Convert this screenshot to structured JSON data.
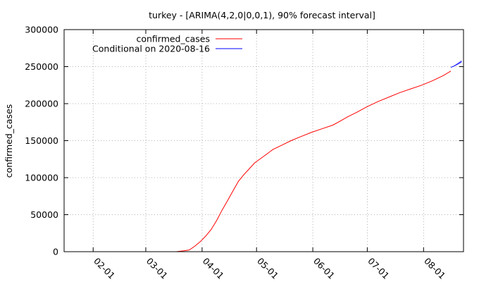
{
  "chart_data": {
    "type": "line",
    "title": "turkey -  [ARIMA(4,2,0|0,0,1), 90% forecast interval]",
    "xlabel": "",
    "ylabel": "confirmed_cases",
    "ylim": [
      0,
      300000
    ],
    "y_ticks": [
      {
        "value": 0,
        "label": "0"
      },
      {
        "value": 50000,
        "label": "50000"
      },
      {
        "value": 100000,
        "label": "100000"
      },
      {
        "value": 150000,
        "label": "150000"
      },
      {
        "value": 200000,
        "label": "200000"
      },
      {
        "value": 250000,
        "label": "250000"
      },
      {
        "value": 300000,
        "label": "300000"
      }
    ],
    "xlim": [
      "2020-01-16",
      "2020-08-23"
    ],
    "x_ticks": [
      {
        "value": "2020-02-01",
        "label": "02-01"
      },
      {
        "value": "2020-03-01",
        "label": "03-01"
      },
      {
        "value": "2020-04-01",
        "label": "04-01"
      },
      {
        "value": "2020-05-01",
        "label": "05-01"
      },
      {
        "value": "2020-06-01",
        "label": "06-01"
      },
      {
        "value": "2020-07-01",
        "label": "07-01"
      },
      {
        "value": "2020-08-01",
        "label": "08-01"
      }
    ],
    "grid": true,
    "legend_position": "top-left",
    "series": [
      {
        "name": "confirmed_cases",
        "color": "#ff0000",
        "points": [
          [
            "2020-03-10",
            0
          ],
          [
            "2020-03-18",
            100
          ],
          [
            "2020-03-22",
            1200
          ],
          [
            "2020-03-25",
            2400
          ],
          [
            "2020-03-28",
            7500
          ],
          [
            "2020-03-31",
            13500
          ],
          [
            "2020-04-03",
            21000
          ],
          [
            "2020-04-06",
            30000
          ],
          [
            "2020-04-09",
            42000
          ],
          [
            "2020-04-12",
            56000
          ],
          [
            "2020-04-15",
            69000
          ],
          [
            "2020-04-18",
            82000
          ],
          [
            "2020-04-21",
            95000
          ],
          [
            "2020-04-24",
            104000
          ],
          [
            "2020-04-27",
            112000
          ],
          [
            "2020-04-30",
            120000
          ],
          [
            "2020-05-05",
            129000
          ],
          [
            "2020-05-10",
            138000
          ],
          [
            "2020-05-15",
            144000
          ],
          [
            "2020-05-20",
            150000
          ],
          [
            "2020-05-25",
            155000
          ],
          [
            "2020-05-31",
            161000
          ],
          [
            "2020-06-06",
            166000
          ],
          [
            "2020-06-12",
            171000
          ],
          [
            "2020-06-15",
            175000
          ],
          [
            "2020-06-20",
            182000
          ],
          [
            "2020-06-25",
            188000
          ],
          [
            "2020-07-01",
            196000
          ],
          [
            "2020-07-07",
            203000
          ],
          [
            "2020-07-13",
            209000
          ],
          [
            "2020-07-19",
            215000
          ],
          [
            "2020-07-25",
            220000
          ],
          [
            "2020-07-31",
            225000
          ],
          [
            "2020-08-06",
            231000
          ],
          [
            "2020-08-12",
            238000
          ],
          [
            "2020-08-16",
            244000
          ]
        ]
      },
      {
        "name": "Conditional on 2020-08-16",
        "color": "#0000ff",
        "points": [
          [
            "2020-08-16",
            249000
          ],
          [
            "2020-08-18",
            251000
          ],
          [
            "2020-08-20",
            254000
          ],
          [
            "2020-08-22",
            257000
          ]
        ],
        "interval_lower": [
          [
            "2020-08-16",
            249000
          ],
          [
            "2020-08-18",
            250500
          ],
          [
            "2020-08-20",
            252500
          ],
          [
            "2020-08-22",
            255000
          ]
        ],
        "interval_upper": [
          [
            "2020-08-16",
            249000
          ],
          [
            "2020-08-18",
            251500
          ],
          [
            "2020-08-20",
            255500
          ],
          [
            "2020-08-22",
            259000
          ]
        ],
        "interval_color": "#b3b3ff"
      }
    ]
  }
}
